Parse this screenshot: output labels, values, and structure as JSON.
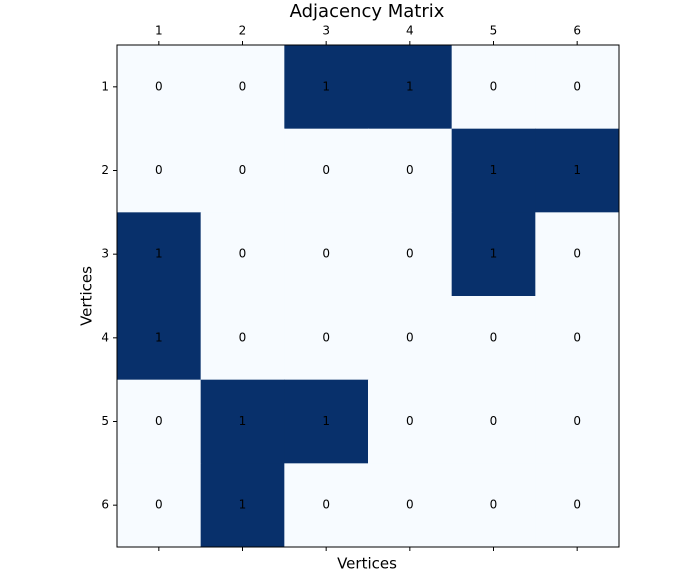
{
  "chart_data": {
    "type": "heatmap",
    "title": "Adjacency Matrix",
    "x_label": "Vertices",
    "y_label": "Vertices",
    "xticks": [
      1,
      2,
      3,
      4,
      5,
      6
    ],
    "yticks": [
      1,
      2,
      3,
      4,
      5,
      6
    ],
    "matrix": [
      [
        0,
        0,
        1,
        1,
        0,
        0
      ],
      [
        0,
        0,
        0,
        0,
        1,
        1
      ],
      [
        1,
        0,
        0,
        0,
        1,
        0
      ],
      [
        1,
        0,
        0,
        0,
        0,
        0
      ],
      [
        0,
        1,
        1,
        0,
        0,
        0
      ],
      [
        0,
        1,
        0,
        0,
        0,
        0
      ]
    ],
    "clim": [
      0,
      1
    ],
    "cmap": [
      "#f7fbff",
      "#08306b"
    ]
  }
}
